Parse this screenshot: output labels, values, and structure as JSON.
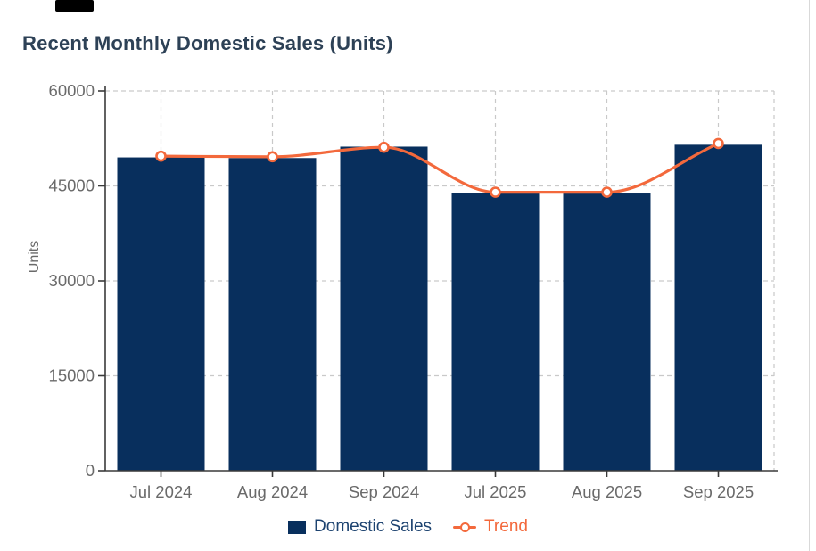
{
  "title": "Recent Monthly Domestic Sales (Units)",
  "chart_data": {
    "type": "bar",
    "title": "Recent Monthly Domestic Sales (Units)",
    "categories": [
      "Jul 2024",
      "Aug 2024",
      "Sep 2024",
      "Jul 2025",
      "Aug 2025",
      "Sep 2025"
    ],
    "series": [
      {
        "name": "Domestic Sales",
        "type": "bar",
        "color": "#082f5d",
        "values": [
          49500,
          49400,
          51200,
          43900,
          43800,
          51500
        ]
      },
      {
        "name": "Trend",
        "type": "line",
        "color": "#f3693c",
        "values": [
          49700,
          49600,
          51100,
          44000,
          44000,
          51700
        ]
      }
    ],
    "xlabel": "",
    "ylabel": "Units",
    "yticks": [
      0,
      15000,
      30000,
      45000,
      60000
    ],
    "ylim": [
      0,
      60000
    ],
    "grid": "dashed",
    "legend_position": "bottom"
  },
  "legend": {
    "items": [
      {
        "label": "Domestic Sales",
        "color": "#082f5d",
        "marker": "square"
      },
      {
        "label": "Trend",
        "color": "#f3693c",
        "marker": "line-circle"
      }
    ]
  },
  "colors": {
    "bar_navy": "#082f5d",
    "trend_orange": "#f3693c",
    "title_text": "#2d4156",
    "axis_text": "#6a6a6a",
    "gridline": "#c9c9c9"
  }
}
